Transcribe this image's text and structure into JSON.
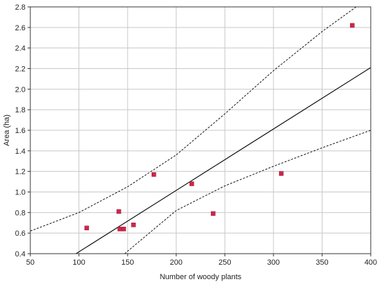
{
  "chart_data": {
    "type": "scatter",
    "title": "",
    "xlabel": "Number of woody plants",
    "ylabel": "Area (ha)",
    "xlim": [
      50,
      400
    ],
    "ylim": [
      0.4,
      2.8
    ],
    "x_ticks": [
      "50",
      "100",
      "150",
      "200",
      "250",
      "300",
      "350",
      "400"
    ],
    "y_ticks": [
      "0.4",
      "0.6",
      "0.8",
      "1.0",
      "1.2",
      "1.4",
      "1.6",
      "1.8",
      "2.0",
      "2.2",
      "2.4",
      "2.6",
      "2.8"
    ],
    "grid": true,
    "points": [
      {
        "x": 108,
        "y": 0.65
      },
      {
        "x": 141,
        "y": 0.81
      },
      {
        "x": 142,
        "y": 0.64
      },
      {
        "x": 146,
        "y": 0.64
      },
      {
        "x": 156,
        "y": 0.68
      },
      {
        "x": 177,
        "y": 1.17
      },
      {
        "x": 216,
        "y": 1.08
      },
      {
        "x": 238,
        "y": 0.79
      },
      {
        "x": 308,
        "y": 1.18
      },
      {
        "x": 381,
        "y": 2.62
      }
    ],
    "regression_line": [
      {
        "x": 97,
        "y": 0.4
      },
      {
        "x": 400,
        "y": 2.21
      }
    ],
    "upper_band": [
      {
        "x": 50,
        "y": 0.62
      },
      {
        "x": 100,
        "y": 0.8
      },
      {
        "x": 150,
        "y": 1.05
      },
      {
        "x": 200,
        "y": 1.36
      },
      {
        "x": 250,
        "y": 1.76
      },
      {
        "x": 300,
        "y": 2.18
      },
      {
        "x": 350,
        "y": 2.56
      },
      {
        "x": 385,
        "y": 2.8
      }
    ],
    "lower_band": [
      {
        "x": 147,
        "y": 0.4
      },
      {
        "x": 200,
        "y": 0.82
      },
      {
        "x": 250,
        "y": 1.06
      },
      {
        "x": 300,
        "y": 1.25
      },
      {
        "x": 350,
        "y": 1.43
      },
      {
        "x": 400,
        "y": 1.6
      }
    ],
    "colors": {
      "point": "#d0264a",
      "grid": "#c8c8c8",
      "line": "#111111",
      "axis": "#333333"
    }
  }
}
